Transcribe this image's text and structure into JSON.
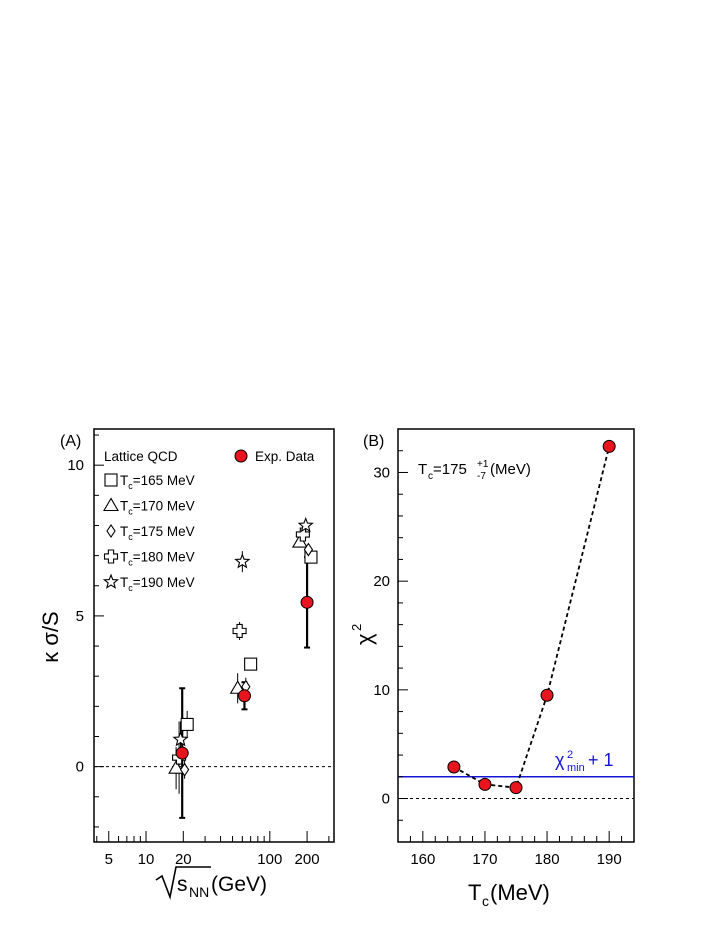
{
  "chart_data": [
    {
      "type": "scatter",
      "panel_label": "(A)",
      "xlabel_radicand": "s",
      "xlabel_sub": "NN",
      "xlabel_unit": " (GeV)",
      "ylabel": "κ σ/S",
      "x_scale": "log",
      "xlim": [
        3.8,
        330
      ],
      "ylim": [
        -2.5,
        11.2
      ],
      "x_ticks": [
        5,
        10,
        20,
        100,
        200
      ],
      "x_tick_labels": [
        "5",
        "10",
        "20",
        "100",
        "200"
      ],
      "y_ticks": [
        0,
        5,
        10
      ],
      "y_tick_labels": [
        "0",
        "5",
        "10"
      ],
      "reference_line": 0,
      "legend_title": "Lattice QCD",
      "legend_position": "top-left",
      "exp_legend_label": "Exp. Data",
      "exp_legend_position": "top-right",
      "series": [
        {
          "name": "T_c=165 MeV",
          "tc": "165",
          "marker": "square",
          "x": [
            21.5,
            70,
            215
          ],
          "y": [
            1.4,
            3.4,
            6.95
          ],
          "err": [
            0.45,
            0,
            0
          ]
        },
        {
          "name": "T_c=170 MeV",
          "tc": "170",
          "marker": "triangle",
          "x": [
            17.5,
            55,
            175
          ],
          "y": [
            -0.05,
            2.6,
            7.45
          ],
          "err": [
            0.7,
            0.5,
            0
          ]
        },
        {
          "name": "T_c=175 MeV",
          "tc": "175",
          "marker": "diamond",
          "x": [
            20.5,
            64,
            205
          ],
          "y": [
            -0.1,
            2.65,
            7.2
          ],
          "err": [
            0.3,
            0.3,
            0
          ]
        },
        {
          "name": "T_c=180 MeV",
          "tc": "180",
          "marker": "cross",
          "x": [
            18.5,
            57,
            185
          ],
          "y": [
            0.3,
            4.5,
            7.7
          ],
          "err": [
            1.2,
            0.3,
            0.25
          ]
        },
        {
          "name": "T_c=190 MeV",
          "tc": "190",
          "marker": "star",
          "x": [
            19.0,
            60,
            195
          ],
          "y": [
            0.9,
            6.8,
            8.0
          ],
          "err": [
            0.6,
            0.35,
            0.2
          ]
        },
        {
          "name": "Exp. Data",
          "marker": "filled-circle",
          "x": [
            19.6,
            62.4,
            200
          ],
          "y": [
            0.45,
            2.35,
            5.45
          ],
          "err": [
            2.15,
            0.45,
            1.5
          ]
        }
      ]
    },
    {
      "type": "line",
      "panel_label": "(B)",
      "xlabel_main": "T",
      "xlabel_sub": "c",
      "xlabel_unit": " (MeV)",
      "ylabel_main": "χ",
      "ylabel_sup": "2",
      "xlim": [
        156,
        194
      ],
      "ylim": [
        -4,
        34
      ],
      "x_ticks": [
        160,
        170,
        180,
        190
      ],
      "x_tick_labels": [
        "160",
        "170",
        "180",
        "190"
      ],
      "y_ticks": [
        0,
        10,
        20,
        30
      ],
      "y_tick_labels": [
        "0",
        "10",
        "20",
        "30"
      ],
      "reference_line": 0,
      "result_main": "T",
      "result_sub": "c",
      "result_value": " =175",
      "result_err_up": "+1",
      "result_err_down": "-7",
      "result_unit": " (MeV)",
      "threshold_value": 2.0,
      "threshold_color": "#1414d8",
      "threshold_label_main": "χ",
      "threshold_label_sup": "2",
      "threshold_label_sub": "min",
      "threshold_label_tail": " + 1",
      "series": [
        {
          "marker": "filled-circle",
          "x": [
            165,
            170,
            175,
            180,
            190
          ],
          "y": [
            2.9,
            1.3,
            1.0,
            9.5,
            32.4
          ]
        }
      ]
    }
  ],
  "colors": {
    "exp_marker": "#e8141e",
    "axis": "#000000",
    "threshold": "#1414d8"
  }
}
